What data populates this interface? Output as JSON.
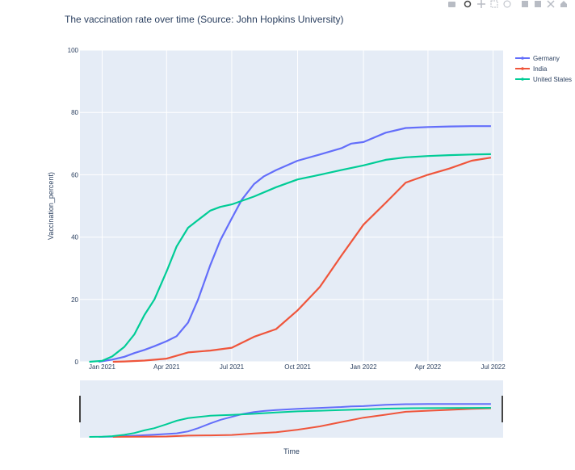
{
  "chart_data": {
    "type": "line",
    "title": "The vaccination rate over time (Source: John Hopkins University)",
    "xlabel": "Time",
    "ylabel": "Vaccination_percent)",
    "ylim": [
      0,
      100
    ],
    "yticks": [
      "0",
      "20",
      "40",
      "60",
      "80",
      "100"
    ],
    "xticks": [
      "Jan 2021",
      "Apr 2021",
      "Jul 2021",
      "Oct 2021",
      "Jan 2022",
      "Apr 2022",
      "Jul 2022"
    ],
    "grid": true,
    "legend_position": "top-right",
    "range_slider": true,
    "series": [
      {
        "name": "Germany",
        "color": "#636efa",
        "x": [
          "2020-12-27",
          "2021-01-15",
          "2021-02-01",
          "2021-02-15",
          "2021-03-01",
          "2021-03-15",
          "2021-04-01",
          "2021-04-15",
          "2021-05-01",
          "2021-05-15",
          "2021-06-01",
          "2021-06-15",
          "2021-07-01",
          "2021-07-15",
          "2021-08-01",
          "2021-08-15",
          "2021-09-01",
          "2021-10-01",
          "2021-11-01",
          "2021-12-01",
          "2021-12-15",
          "2022-01-01",
          "2022-02-01",
          "2022-03-01",
          "2022-04-01",
          "2022-05-01",
          "2022-06-01",
          "2022-06-28"
        ],
        "y": [
          0,
          0.7,
          1.6,
          2.8,
          3.8,
          5,
          6.6,
          8.2,
          12.6,
          20,
          31,
          39,
          46,
          52,
          57,
          59.5,
          61.5,
          64.5,
          66.5,
          68.5,
          70,
          70.5,
          73.5,
          75,
          75.3,
          75.5,
          75.6,
          75.6
        ]
      },
      {
        "name": "India",
        "color": "#ef553b",
        "x": [
          "2021-01-16",
          "2021-02-01",
          "2021-03-01",
          "2021-04-01",
          "2021-05-01",
          "2021-06-01",
          "2021-07-01",
          "2021-08-01",
          "2021-09-01",
          "2021-10-01",
          "2021-11-01",
          "2021-12-01",
          "2022-01-01",
          "2022-02-01",
          "2022-03-01",
          "2022-04-01",
          "2022-05-01",
          "2022-06-01",
          "2022-06-28"
        ],
        "y": [
          0,
          0.1,
          0.4,
          1,
          3,
          3.6,
          4.5,
          8,
          10.5,
          16.5,
          24,
          34,
          44,
          51,
          57.5,
          60,
          62,
          64.5,
          65.5
        ]
      },
      {
        "name": "United States",
        "color": "#00cc96",
        "x": [
          "2020-12-14",
          "2021-01-01",
          "2021-01-15",
          "2021-02-01",
          "2021-02-15",
          "2021-03-01",
          "2021-03-15",
          "2021-04-01",
          "2021-04-15",
          "2021-05-01",
          "2021-05-15",
          "2021-06-01",
          "2021-06-15",
          "2021-07-01",
          "2021-08-01",
          "2021-09-01",
          "2021-10-01",
          "2021-11-01",
          "2021-12-01",
          "2022-01-01",
          "2022-02-01",
          "2022-03-01",
          "2022-04-01",
          "2022-05-01",
          "2022-06-01",
          "2022-06-28"
        ],
        "y": [
          0,
          0.3,
          1.7,
          4.8,
          8.8,
          15,
          20,
          29,
          37,
          43,
          45.5,
          48.5,
          49.7,
          50.5,
          53,
          56,
          58.5,
          60,
          61.5,
          63,
          64.8,
          65.6,
          66,
          66.3,
          66.5,
          66.6
        ]
      }
    ]
  }
}
